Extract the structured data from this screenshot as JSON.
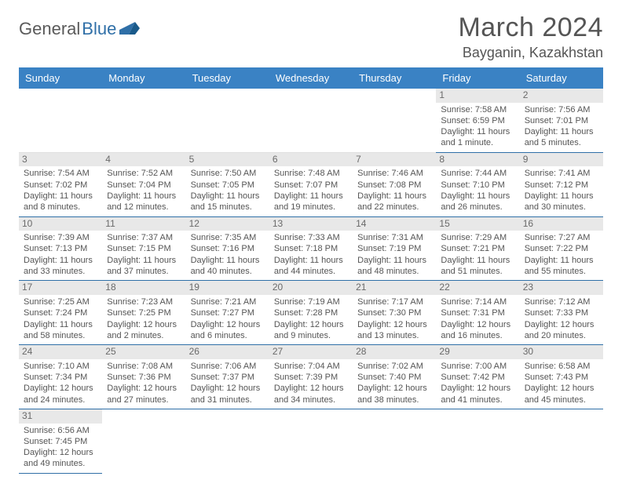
{
  "logo": {
    "part1": "General",
    "part2": "Blue"
  },
  "title": {
    "month": "March 2024",
    "location": "Bayganin, Kazakhstan"
  },
  "colors": {
    "header_bg": "#3a82c4",
    "header_text": "#ffffff",
    "row_divider": "#2f6fa7",
    "daynum_bg": "#e8e8e8",
    "text": "#555555",
    "logo_accent": "#2f6fa7"
  },
  "typography": {
    "month_fontsize": 34,
    "location_fontsize": 18,
    "dayheader_fontsize": 13,
    "cell_fontsize": 11
  },
  "day_headers": [
    "Sunday",
    "Monday",
    "Tuesday",
    "Wednesday",
    "Thursday",
    "Friday",
    "Saturday"
  ],
  "weeks": [
    [
      null,
      null,
      null,
      null,
      null,
      {
        "n": "1",
        "sr": "Sunrise: 7:58 AM",
        "ss": "Sunset: 6:59 PM",
        "dl1": "Daylight: 11 hours",
        "dl2": "and 1 minute."
      },
      {
        "n": "2",
        "sr": "Sunrise: 7:56 AM",
        "ss": "Sunset: 7:01 PM",
        "dl1": "Daylight: 11 hours",
        "dl2": "and 5 minutes."
      }
    ],
    [
      {
        "n": "3",
        "sr": "Sunrise: 7:54 AM",
        "ss": "Sunset: 7:02 PM",
        "dl1": "Daylight: 11 hours",
        "dl2": "and 8 minutes."
      },
      {
        "n": "4",
        "sr": "Sunrise: 7:52 AM",
        "ss": "Sunset: 7:04 PM",
        "dl1": "Daylight: 11 hours",
        "dl2": "and 12 minutes."
      },
      {
        "n": "5",
        "sr": "Sunrise: 7:50 AM",
        "ss": "Sunset: 7:05 PM",
        "dl1": "Daylight: 11 hours",
        "dl2": "and 15 minutes."
      },
      {
        "n": "6",
        "sr": "Sunrise: 7:48 AM",
        "ss": "Sunset: 7:07 PM",
        "dl1": "Daylight: 11 hours",
        "dl2": "and 19 minutes."
      },
      {
        "n": "7",
        "sr": "Sunrise: 7:46 AM",
        "ss": "Sunset: 7:08 PM",
        "dl1": "Daylight: 11 hours",
        "dl2": "and 22 minutes."
      },
      {
        "n": "8",
        "sr": "Sunrise: 7:44 AM",
        "ss": "Sunset: 7:10 PM",
        "dl1": "Daylight: 11 hours",
        "dl2": "and 26 minutes."
      },
      {
        "n": "9",
        "sr": "Sunrise: 7:41 AM",
        "ss": "Sunset: 7:12 PM",
        "dl1": "Daylight: 11 hours",
        "dl2": "and 30 minutes."
      }
    ],
    [
      {
        "n": "10",
        "sr": "Sunrise: 7:39 AM",
        "ss": "Sunset: 7:13 PM",
        "dl1": "Daylight: 11 hours",
        "dl2": "and 33 minutes."
      },
      {
        "n": "11",
        "sr": "Sunrise: 7:37 AM",
        "ss": "Sunset: 7:15 PM",
        "dl1": "Daylight: 11 hours",
        "dl2": "and 37 minutes."
      },
      {
        "n": "12",
        "sr": "Sunrise: 7:35 AM",
        "ss": "Sunset: 7:16 PM",
        "dl1": "Daylight: 11 hours",
        "dl2": "and 40 minutes."
      },
      {
        "n": "13",
        "sr": "Sunrise: 7:33 AM",
        "ss": "Sunset: 7:18 PM",
        "dl1": "Daylight: 11 hours",
        "dl2": "and 44 minutes."
      },
      {
        "n": "14",
        "sr": "Sunrise: 7:31 AM",
        "ss": "Sunset: 7:19 PM",
        "dl1": "Daylight: 11 hours",
        "dl2": "and 48 minutes."
      },
      {
        "n": "15",
        "sr": "Sunrise: 7:29 AM",
        "ss": "Sunset: 7:21 PM",
        "dl1": "Daylight: 11 hours",
        "dl2": "and 51 minutes."
      },
      {
        "n": "16",
        "sr": "Sunrise: 7:27 AM",
        "ss": "Sunset: 7:22 PM",
        "dl1": "Daylight: 11 hours",
        "dl2": "and 55 minutes."
      }
    ],
    [
      {
        "n": "17",
        "sr": "Sunrise: 7:25 AM",
        "ss": "Sunset: 7:24 PM",
        "dl1": "Daylight: 11 hours",
        "dl2": "and 58 minutes."
      },
      {
        "n": "18",
        "sr": "Sunrise: 7:23 AM",
        "ss": "Sunset: 7:25 PM",
        "dl1": "Daylight: 12 hours",
        "dl2": "and 2 minutes."
      },
      {
        "n": "19",
        "sr": "Sunrise: 7:21 AM",
        "ss": "Sunset: 7:27 PM",
        "dl1": "Daylight: 12 hours",
        "dl2": "and 6 minutes."
      },
      {
        "n": "20",
        "sr": "Sunrise: 7:19 AM",
        "ss": "Sunset: 7:28 PM",
        "dl1": "Daylight: 12 hours",
        "dl2": "and 9 minutes."
      },
      {
        "n": "21",
        "sr": "Sunrise: 7:17 AM",
        "ss": "Sunset: 7:30 PM",
        "dl1": "Daylight: 12 hours",
        "dl2": "and 13 minutes."
      },
      {
        "n": "22",
        "sr": "Sunrise: 7:14 AM",
        "ss": "Sunset: 7:31 PM",
        "dl1": "Daylight: 12 hours",
        "dl2": "and 16 minutes."
      },
      {
        "n": "23",
        "sr": "Sunrise: 7:12 AM",
        "ss": "Sunset: 7:33 PM",
        "dl1": "Daylight: 12 hours",
        "dl2": "and 20 minutes."
      }
    ],
    [
      {
        "n": "24",
        "sr": "Sunrise: 7:10 AM",
        "ss": "Sunset: 7:34 PM",
        "dl1": "Daylight: 12 hours",
        "dl2": "and 24 minutes."
      },
      {
        "n": "25",
        "sr": "Sunrise: 7:08 AM",
        "ss": "Sunset: 7:36 PM",
        "dl1": "Daylight: 12 hours",
        "dl2": "and 27 minutes."
      },
      {
        "n": "26",
        "sr": "Sunrise: 7:06 AM",
        "ss": "Sunset: 7:37 PM",
        "dl1": "Daylight: 12 hours",
        "dl2": "and 31 minutes."
      },
      {
        "n": "27",
        "sr": "Sunrise: 7:04 AM",
        "ss": "Sunset: 7:39 PM",
        "dl1": "Daylight: 12 hours",
        "dl2": "and 34 minutes."
      },
      {
        "n": "28",
        "sr": "Sunrise: 7:02 AM",
        "ss": "Sunset: 7:40 PM",
        "dl1": "Daylight: 12 hours",
        "dl2": "and 38 minutes."
      },
      {
        "n": "29",
        "sr": "Sunrise: 7:00 AM",
        "ss": "Sunset: 7:42 PM",
        "dl1": "Daylight: 12 hours",
        "dl2": "and 41 minutes."
      },
      {
        "n": "30",
        "sr": "Sunrise: 6:58 AM",
        "ss": "Sunset: 7:43 PM",
        "dl1": "Daylight: 12 hours",
        "dl2": "and 45 minutes."
      }
    ],
    [
      {
        "n": "31",
        "sr": "Sunrise: 6:56 AM",
        "ss": "Sunset: 7:45 PM",
        "dl1": "Daylight: 12 hours",
        "dl2": "and 49 minutes."
      },
      null,
      null,
      null,
      null,
      null,
      null
    ]
  ]
}
